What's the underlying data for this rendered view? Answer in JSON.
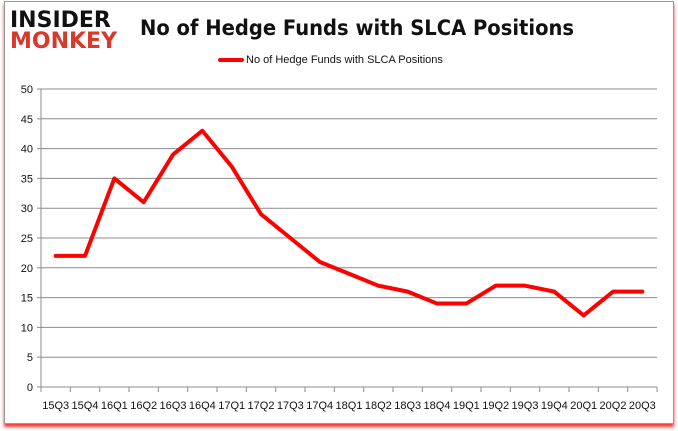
{
  "logo": {
    "line1": "INSIDER",
    "line2": "MONKEY"
  },
  "chart_data": {
    "type": "line",
    "title": "No of Hedge Funds with SLCA Positions",
    "categories": [
      "15Q3",
      "15Q4",
      "16Q1",
      "16Q2",
      "16Q3",
      "16Q4",
      "17Q1",
      "17Q2",
      "17Q3",
      "17Q4",
      "18Q1",
      "18Q2",
      "18Q3",
      "18Q4",
      "19Q1",
      "19Q2",
      "19Q3",
      "19Q4",
      "20Q1",
      "20Q2",
      "20Q3"
    ],
    "series": [
      {
        "name": "No of Hedge Funds with SLCA Positions",
        "color": "#ff0000",
        "values": [
          22,
          22,
          35,
          31,
          39,
          43,
          37,
          29,
          25,
          21,
          19,
          17,
          16,
          14,
          14,
          17,
          17,
          16,
          12,
          16,
          16
        ]
      }
    ],
    "ylim": [
      0,
      50
    ],
    "yticks": [
      0,
      5,
      10,
      15,
      20,
      25,
      30,
      35,
      40,
      45,
      50
    ],
    "grid": true,
    "legend": "top-center"
  }
}
